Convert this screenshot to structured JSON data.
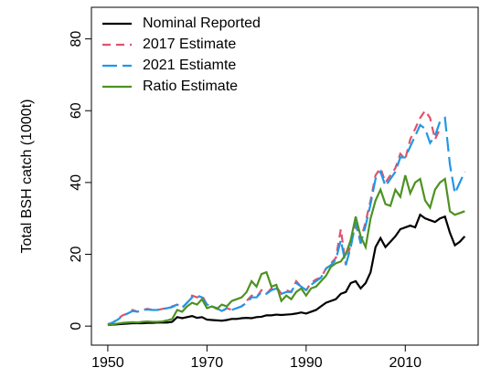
{
  "chart_data": {
    "type": "line",
    "ylabel": "Total BSH catch (1000t)",
    "x": [
      1950,
      1951,
      1952,
      1953,
      1954,
      1955,
      1956,
      1957,
      1958,
      1959,
      1960,
      1961,
      1962,
      1963,
      1964,
      1965,
      1966,
      1967,
      1968,
      1969,
      1970,
      1971,
      1972,
      1973,
      1974,
      1975,
      1976,
      1977,
      1978,
      1979,
      1980,
      1981,
      1982,
      1983,
      1984,
      1985,
      1986,
      1987,
      1988,
      1989,
      1990,
      1991,
      1992,
      1993,
      1994,
      1995,
      1996,
      1997,
      1998,
      1999,
      2000,
      2001,
      2002,
      2003,
      2004,
      2005,
      2006,
      2007,
      2008,
      2009,
      2010,
      2011,
      2012,
      2013,
      2014,
      2015,
      2016,
      2017,
      2018,
      2019,
      2020,
      2021,
      2022
    ],
    "series": [
      {
        "name": "Nominal Reported",
        "color": "#000000",
        "dash": "solid",
        "values": [
          0.3,
          0.4,
          0.5,
          0.6,
          0.7,
          0.8,
          0.8,
          0.8,
          0.9,
          0.9,
          1.0,
          1.0,
          1.0,
          1.2,
          2.5,
          2.2,
          2.5,
          2.8,
          2.3,
          2.5,
          1.8,
          1.7,
          1.6,
          1.5,
          1.7,
          2.0,
          2.0,
          2.2,
          2.3,
          2.2,
          2.5,
          2.6,
          3.0,
          3.0,
          3.2,
          3.1,
          3.2,
          3.3,
          3.5,
          3.8,
          3.5,
          4.0,
          4.5,
          5.5,
          6.5,
          7.0,
          7.5,
          9.0,
          9.5,
          12.0,
          12.5,
          10.5,
          12.0,
          15.0,
          22.0,
          24.5,
          22.0,
          23.5,
          25.0,
          27.0,
          27.5,
          28.0,
          27.5,
          31.0,
          30.0,
          29.5,
          29.0,
          30.0,
          30.5,
          26.0,
          22.5,
          23.5,
          25.0
        ]
      },
      {
        "name": "2017 Estimate",
        "color": "#df536b",
        "dash": "dashed",
        "values": [
          0.5,
          1.0,
          2.0,
          3.0,
          3.5,
          4.5,
          4.0,
          4.5,
          4.8,
          4.5,
          4.5,
          4.8,
          5.0,
          5.5,
          6.0,
          5.0,
          6.5,
          8.5,
          8.0,
          8.5,
          6.0,
          5.5,
          5.0,
          4.0,
          5.0,
          4.5,
          5.0,
          5.5,
          7.0,
          8.5,
          8.0,
          10.0,
          9.0,
          10.5,
          11.0,
          9.0,
          10.0,
          9.5,
          12.5,
          11.0,
          10.0,
          12.0,
          13.0,
          13.5,
          16.0,
          17.5,
          19.0,
          27.0,
          17.0,
          23.0,
          28.0,
          24.0,
          29.0,
          35.0,
          42.0,
          44.0,
          40.0,
          42.0,
          44.0,
          48.0,
          46.5,
          52.0,
          55.0,
          58.0,
          60.0,
          58.0,
          52.0,
          55.0,
          null,
          null,
          null,
          null,
          null
        ]
      },
      {
        "name": "2021 Estiamte",
        "color": "#2297e6",
        "dash": "longdash",
        "values": [
          0.5,
          1.0,
          1.8,
          2.8,
          3.5,
          4.2,
          4.0,
          4.5,
          4.6,
          4.5,
          4.5,
          4.7,
          5.0,
          5.3,
          6.0,
          5.2,
          6.5,
          8.0,
          8.5,
          8.0,
          6.0,
          5.5,
          5.0,
          4.2,
          5.0,
          4.5,
          5.0,
          5.5,
          6.5,
          8.0,
          8.0,
          9.5,
          9.0,
          10.0,
          10.5,
          9.0,
          9.5,
          9.5,
          12.0,
          11.0,
          10.0,
          11.5,
          12.5,
          13.5,
          16.0,
          17.0,
          18.5,
          24.0,
          17.0,
          22.0,
          29.0,
          23.0,
          28.0,
          34.0,
          41.0,
          43.0,
          39.0,
          41.0,
          43.0,
          47.0,
          47.0,
          50.0,
          53.0,
          56.0,
          55.0,
          51.0,
          53.0,
          57.0,
          58.0,
          45.0,
          37.0,
          40.0,
          43.0
        ]
      },
      {
        "name": "Ratio Estimate",
        "color": "#4d9221",
        "dash": "solid",
        "values": [
          0.3,
          0.5,
          0.7,
          0.9,
          1.0,
          1.1,
          1.0,
          1.2,
          1.3,
          1.2,
          1.2,
          1.3,
          1.6,
          2.0,
          4.5,
          4.0,
          5.5,
          6.5,
          6.0,
          7.5,
          5.0,
          5.5,
          4.8,
          6.0,
          5.5,
          7.0,
          7.5,
          8.0,
          9.5,
          12.5,
          11.0,
          14.5,
          15.0,
          11.0,
          11.5,
          7.0,
          8.5,
          7.5,
          9.5,
          10.5,
          8.5,
          10.5,
          11.0,
          12.5,
          14.0,
          16.5,
          17.5,
          18.0,
          20.0,
          24.0,
          30.5,
          25.0,
          22.0,
          30.0,
          35.0,
          38.0,
          34.0,
          33.5,
          38.0,
          36.0,
          42.0,
          37.0,
          40.0,
          41.0,
          35.0,
          33.0,
          38.0,
          40.0,
          41.0,
          32.0,
          31.0,
          31.5,
          32.0
        ]
      }
    ],
    "xlim": [
      1946.7,
      2024.7
    ],
    "ylim": [
      -5.3,
      88.8
    ],
    "xticks": [
      1950,
      1970,
      1990,
      2010
    ],
    "yticks": [
      0,
      20,
      40,
      60,
      80
    ],
    "legend": "top-left"
  }
}
